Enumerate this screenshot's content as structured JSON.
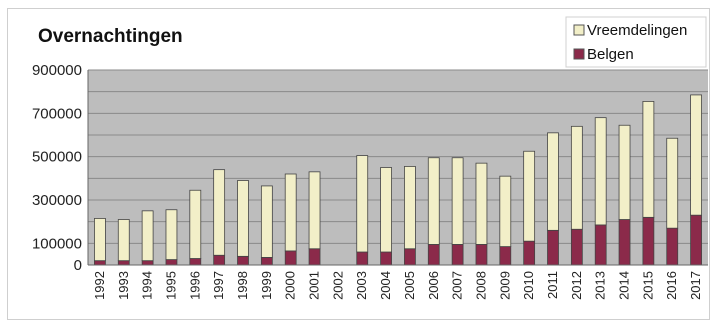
{
  "chart_data": {
    "type": "bar",
    "stacked": true,
    "title": "Overnachtingen",
    "xlabel": "",
    "ylabel": "",
    "ylim": [
      0,
      900000
    ],
    "y_ticks": [
      0,
      100000,
      300000,
      500000,
      700000,
      900000
    ],
    "y_tick_labels": [
      "0",
      "100000",
      "300000",
      "500000",
      "700000",
      "900000"
    ],
    "grid": true,
    "legend_position": "top-right",
    "categories": [
      "1992",
      "1993",
      "1994",
      "1995",
      "1996",
      "1997",
      "1998",
      "1999",
      "2000",
      "2001",
      "2002",
      "2003",
      "2004",
      "2005",
      "2006",
      "2007",
      "2008",
      "2009",
      "2010",
      "2011",
      "2012",
      "2013",
      "2014",
      "2015",
      "2016",
      "2017"
    ],
    "series": [
      {
        "name": "Belgen",
        "color": "#8b2a4a",
        "values": [
          20000,
          20000,
          20000,
          25000,
          30000,
          45000,
          40000,
          35000,
          65000,
          75000,
          0,
          60000,
          60000,
          75000,
          95000,
          95000,
          95000,
          85000,
          110000,
          160000,
          165000,
          185000,
          210000,
          220000,
          170000,
          230000
        ]
      },
      {
        "name": "Vreemdelingen",
        "color": "#f2efc8",
        "values": [
          195000,
          190000,
          230000,
          230000,
          315000,
          395000,
          350000,
          330000,
          355000,
          355000,
          0,
          445000,
          390000,
          380000,
          400000,
          400000,
          375000,
          325000,
          415000,
          450000,
          475000,
          495000,
          435000,
          535000,
          415000,
          555000
        ]
      }
    ]
  }
}
